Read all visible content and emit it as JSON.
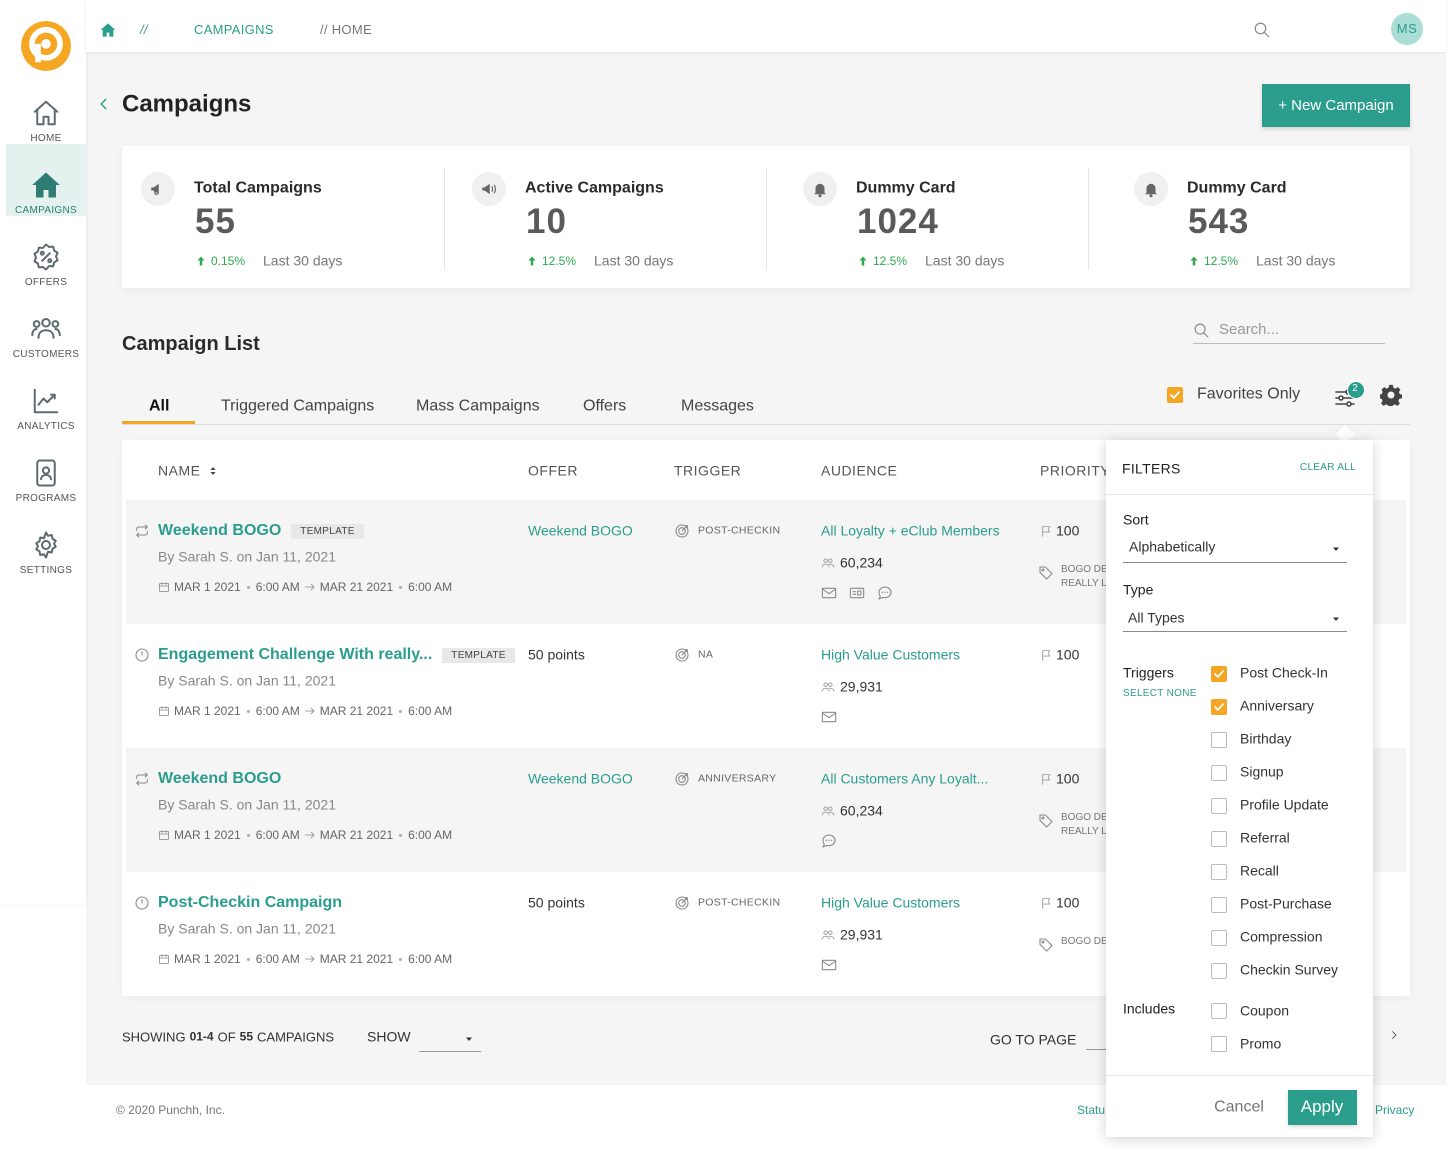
{
  "sidebar": {
    "nav": [
      {
        "label": "HOME"
      },
      {
        "label": "CAMPAIGNS",
        "active": true
      },
      {
        "label": "OFFERS"
      },
      {
        "label": "CUSTOMERS"
      },
      {
        "label": "ANALYTICS"
      },
      {
        "label": "PROGRAMS"
      },
      {
        "label": "SETTINGS"
      }
    ]
  },
  "topbar": {
    "breadcrumb": [
      "//",
      "CAMPAIGNS",
      "// HOME"
    ],
    "avatar": "MS"
  },
  "header": {
    "title": "Campaigns",
    "new_button": "+ New Campaign"
  },
  "stats": [
    {
      "title": "Total Campaigns",
      "value": 55,
      "change": "0.15%",
      "period": "Last 30 days"
    },
    {
      "title": "Active Campaigns",
      "value": 10,
      "change": "12.5%",
      "period": "Last 30 days"
    },
    {
      "title": "Dummy Card",
      "value": 1024,
      "change": "12.5%",
      "period": "Last 30 days"
    },
    {
      "title": "Dummy Card",
      "value": 543,
      "change": "12.5%",
      "period": "Last 30 days"
    }
  ],
  "list": {
    "title": "Campaign List",
    "search_placeholder": "Search...",
    "tabs": [
      {
        "label": "All",
        "active": true
      },
      {
        "label": "Triggered Campaigns"
      },
      {
        "label": "Mass Campaigns"
      },
      {
        "label": "Offers"
      },
      {
        "label": "Messages"
      }
    ],
    "favorites": {
      "label": "Favorites Only",
      "checked": true
    },
    "filter_count": 2,
    "columns": [
      "NAME",
      "OFFER",
      "TRIGGER",
      "AUDIENCE",
      "PRIORITY"
    ],
    "rows": [
      {
        "recurring": true,
        "name": "Weekend BOGO",
        "tag": "TEMPLATE",
        "author": "By Sarah S. on Jan 11, 2021",
        "start_date": "MAR 1 2021",
        "start_time": "6:00 AM",
        "end_date": "MAR 21 2021",
        "end_time": "6:00 AM",
        "offer": "Weekend BOGO",
        "offer_is_link": true,
        "trigger": "POST-CHECKIN",
        "audience": "All Loyalty + eClub Members",
        "audience_count": "60,234",
        "channels": [
          "email",
          "sms",
          "chat"
        ],
        "priority": 100,
        "offer_tags": [
          "BOGO DE",
          "REALLY L"
        ]
      },
      {
        "recurring": false,
        "name": "Engagement Challenge With really...",
        "tag": "TEMPLATE",
        "author": "By Sarah S. on Jan 11, 2021",
        "start_date": "MAR 1 2021",
        "start_time": "6:00 AM",
        "end_date": "MAR 21 2021",
        "end_time": "6:00 AM",
        "offer": "50 points",
        "offer_is_link": false,
        "trigger": "NA",
        "audience": "High Value Customers",
        "audience_count": "29,931",
        "channels": [
          "email"
        ],
        "priority": 100,
        "offer_tags": []
      },
      {
        "recurring": true,
        "name": "Weekend BOGO",
        "author": "By Sarah S. on Jan 11, 2021",
        "start_date": "MAR 1 2021",
        "start_time": "6:00 AM",
        "end_date": "MAR 21 2021",
        "end_time": "6:00 AM",
        "offer": "Weekend BOGO",
        "offer_is_link": true,
        "trigger": "ANNIVERSARY",
        "audience": "All Customers Any Loyalt...",
        "audience_count": "60,234",
        "channels": [
          "chat"
        ],
        "priority": 100,
        "offer_tags": [
          "BOGO DE",
          "REALLY L"
        ]
      },
      {
        "recurring": false,
        "name": "Post-Checkin Campaign",
        "author": "By Sarah S. on Jan 11, 2021",
        "start_date": "MAR 1 2021",
        "start_time": "6:00 AM",
        "end_date": "MAR 21 2021",
        "end_time": "6:00 AM",
        "offer": "50 points",
        "offer_is_link": false,
        "trigger": "POST-CHECKIN",
        "audience": "High Value Customers",
        "audience_count": "29,931",
        "channels": [
          "email"
        ],
        "priority": 100,
        "offer_tags": [
          "BOGO DE"
        ]
      }
    ]
  },
  "pagination": {
    "showing": [
      "SHOWING",
      "01-4",
      "OF",
      "55",
      "CAMPAIGNS"
    ],
    "show": "SHOW",
    "go_to_page": "GO TO PAGE"
  },
  "footer": {
    "copyright": "© 2020 Punchh, Inc.",
    "status": "Statu",
    "privacy": "Privacy"
  },
  "filters": {
    "title": "FILTERS",
    "clear_all": "CLEAR ALL",
    "sort_label": "Sort",
    "sort_value": "Alphabetically",
    "type_label": "Type",
    "type_value": "All Types",
    "triggers_label": "Triggers",
    "select_none": "SELECT NONE",
    "triggers": [
      {
        "label": "Post Check-In",
        "checked": true
      },
      {
        "label": "Anniversary",
        "checked": true
      },
      {
        "label": "Birthday"
      },
      {
        "label": "Signup"
      },
      {
        "label": "Profile Update"
      },
      {
        "label": "Referral"
      },
      {
        "label": "Recall"
      },
      {
        "label": "Post-Purchase"
      },
      {
        "label": "Compression"
      },
      {
        "label": "Checkin Survey"
      }
    ],
    "includes_label": "Includes",
    "includes": [
      {
        "label": "Coupon"
      },
      {
        "label": "Promo"
      }
    ],
    "cancel": "Cancel",
    "apply": "Apply"
  }
}
